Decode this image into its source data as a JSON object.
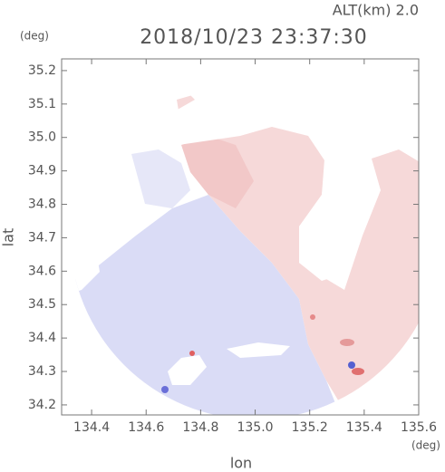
{
  "chart_data": {
    "type": "map",
    "title": "2018/10/23 23:37:30",
    "subtitle": "ALT(km) 2.0",
    "x_label": "lon",
    "y_label": "lat",
    "x_unit": "(deg)",
    "y_unit": "(deg)",
    "xlim": [
      134.29,
      135.6
    ],
    "ylim": [
      34.17,
      35.235
    ],
    "xticks": [
      134.4,
      134.6,
      134.8,
      {
        "value": 135.0,
        "label": "135.0"
      },
      135.2,
      135.4,
      135.6
    ],
    "yticks": [
      34.2,
      34.3,
      34.4,
      34.5,
      34.6,
      34.7,
      34.8,
      34.9,
      {
        "value": 35.0,
        "label": "35.0"
      },
      35.1,
      35.2
    ]
  }
}
